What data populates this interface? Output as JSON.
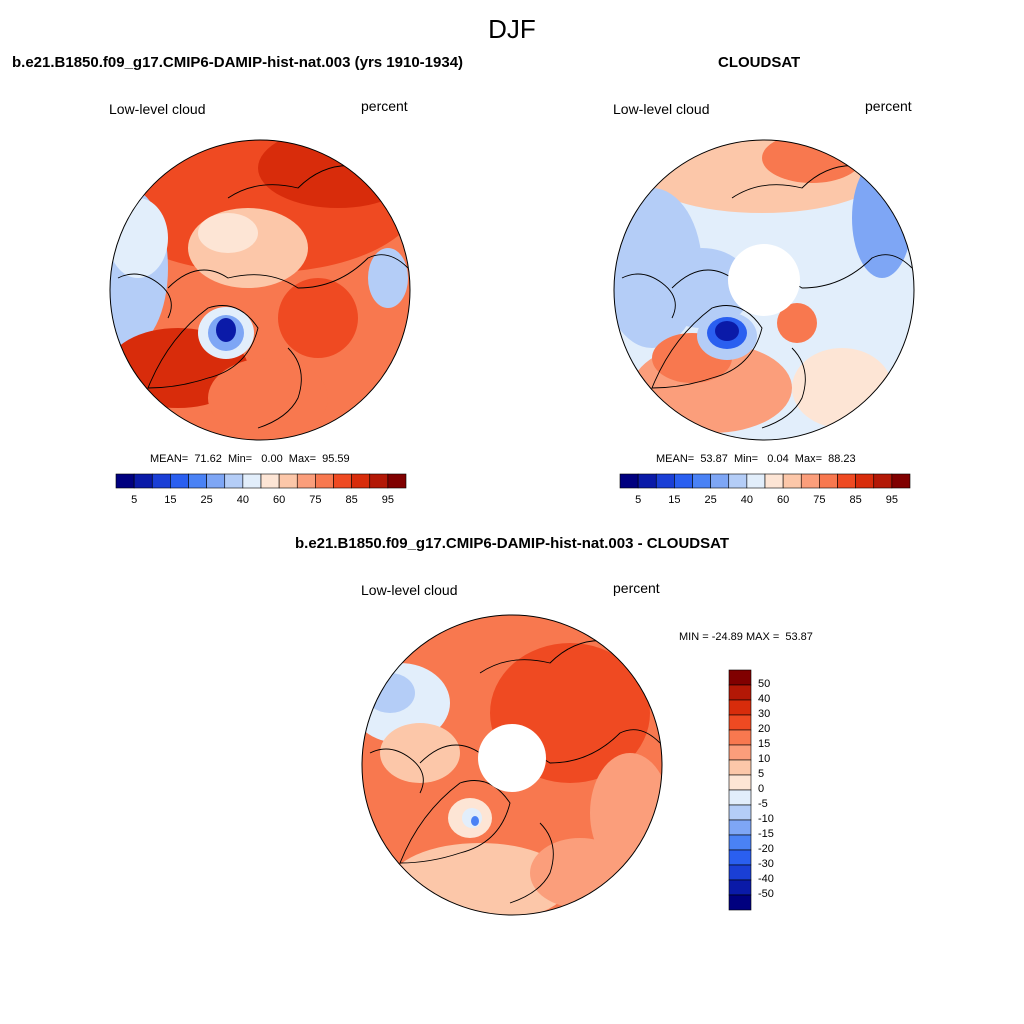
{
  "main_title": "DJF",
  "colors": {
    "abs_levels": [
      "#00007f",
      "#0a1aa8",
      "#1a3fd6",
      "#2a5ff0",
      "#4a82f5",
      "#7ea6f5",
      "#b4cdf7",
      "#e2eefb",
      "#fde5d5",
      "#fcc7a9",
      "#fb9e7b",
      "#f8784f",
      "#ef4a22",
      "#d82c0b",
      "#b31806",
      "#800000"
    ],
    "diff_levels": [
      "#800000",
      "#b31806",
      "#d82c0b",
      "#ef4a22",
      "#f8784f",
      "#fb9e7b",
      "#fcc7a9",
      "#fde5d5",
      "#e2eefb",
      "#b4cdf7",
      "#7ea6f5",
      "#4a82f5",
      "#2a5ff0",
      "#1a3fd6",
      "#0a1aa8",
      "#00007f"
    ]
  },
  "panels": [
    {
      "title": "b.e21.B1850.f09_g17.CMIP6-DAMIP-hist-nat.003 (yrs 1910-1934)",
      "variable": "Low-level cloud",
      "units": "percent",
      "stats": "MEAN=  71.62  Min=   0.00  Max=  95.59",
      "colorbar_ticks": [
        "5",
        "15",
        "25",
        "40",
        "60",
        "75",
        "85",
        "95"
      ],
      "has_hole": false
    },
    {
      "title": "CLOUDSAT",
      "variable": "Low-level cloud",
      "units": "percent",
      "stats": "MEAN=  53.87  Min=   0.04  Max=  88.23",
      "colorbar_ticks": [
        "5",
        "15",
        "25",
        "40",
        "60",
        "75",
        "85",
        "95"
      ],
      "has_hole": true
    },
    {
      "title": "b.e21.B1850.f09_g17.CMIP6-DAMIP-hist-nat.003 - CLOUDSAT",
      "variable": "Low-level cloud",
      "units": "percent",
      "stats": "MIN = -24.89 MAX =  53.87",
      "colorbar_ticks": [
        "50",
        "40",
        "30",
        "20",
        "15",
        "10",
        "5",
        "0",
        "-5",
        "-10",
        "-15",
        "-20",
        "-30",
        "-40",
        "-50"
      ],
      "has_hole": true
    }
  ]
}
